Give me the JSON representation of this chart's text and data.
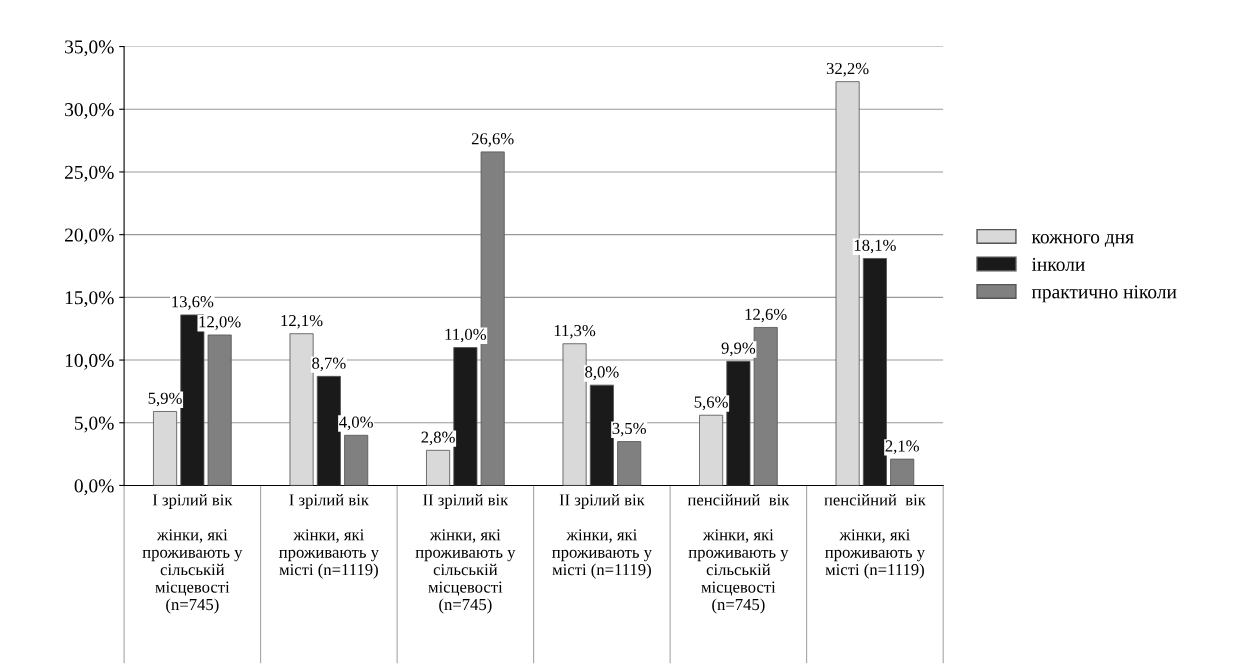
{
  "chart_data": {
    "type": "bar",
    "categories": [
      "I зрілий вік\n\nжінки, які\nпроживають у\nсільській\nмісцевості\n(n=745)",
      "I зрілий вік\n\nжінки, які\nпроживають у\nмісті (n=1119)",
      "II зрілий вік\n\nжінки, які\nпроживають у\nсільській\nмісцевості\n(n=745)",
      "II зрілий вік\n\nжінки, які\nпроживають у\nмісті (n=1119)",
      "пенсійний  вік\n\nжінки, які\nпроживають у\nсільській\nмісцевості\n(n=745)",
      "пенсійний  вік\n\nжінки, які\nпроживають у\nмісті (n=1119)"
    ],
    "series": [
      {
        "name": "кожного дня",
        "color": "#d9d9d9",
        "values": [
          5.9,
          12.1,
          2.8,
          11.3,
          5.6,
          32.2
        ]
      },
      {
        "name": "інколи",
        "color": "#1a1a1a",
        "values": [
          13.6,
          8.7,
          11.0,
          8.0,
          9.9,
          18.1
        ]
      },
      {
        "name": "практично ніколи",
        "color": "#808080",
        "values": [
          12.0,
          4.0,
          26.6,
          3.5,
          12.6,
          2.1
        ]
      }
    ],
    "value_labels": [
      [
        "5,9%",
        "12,1%",
        "2,8%",
        "11,3%",
        "5,6%",
        "32,2%"
      ],
      [
        "13,6%",
        "8,7%",
        "11,0%",
        "8,0%",
        "9,9%",
        "18,1%"
      ],
      [
        "12,0%",
        "4,0%",
        "26,6%",
        "3,5%",
        "12,6%",
        "2,1%"
      ]
    ],
    "ylim": [
      0,
      35
    ],
    "yticks": [
      {
        "value": 0,
        "label": "0,0%"
      },
      {
        "value": 5,
        "label": "5,0%"
      },
      {
        "value": 10,
        "label": "10,0%"
      },
      {
        "value": 15,
        "label": "15,0%"
      },
      {
        "value": 20,
        "label": "20,0%"
      },
      {
        "value": 25,
        "label": "25,0%"
      },
      {
        "value": 30,
        "label": "30,0%"
      },
      {
        "value": 35,
        "label": "35,0%"
      }
    ],
    "grid": "y",
    "legend": "right"
  }
}
